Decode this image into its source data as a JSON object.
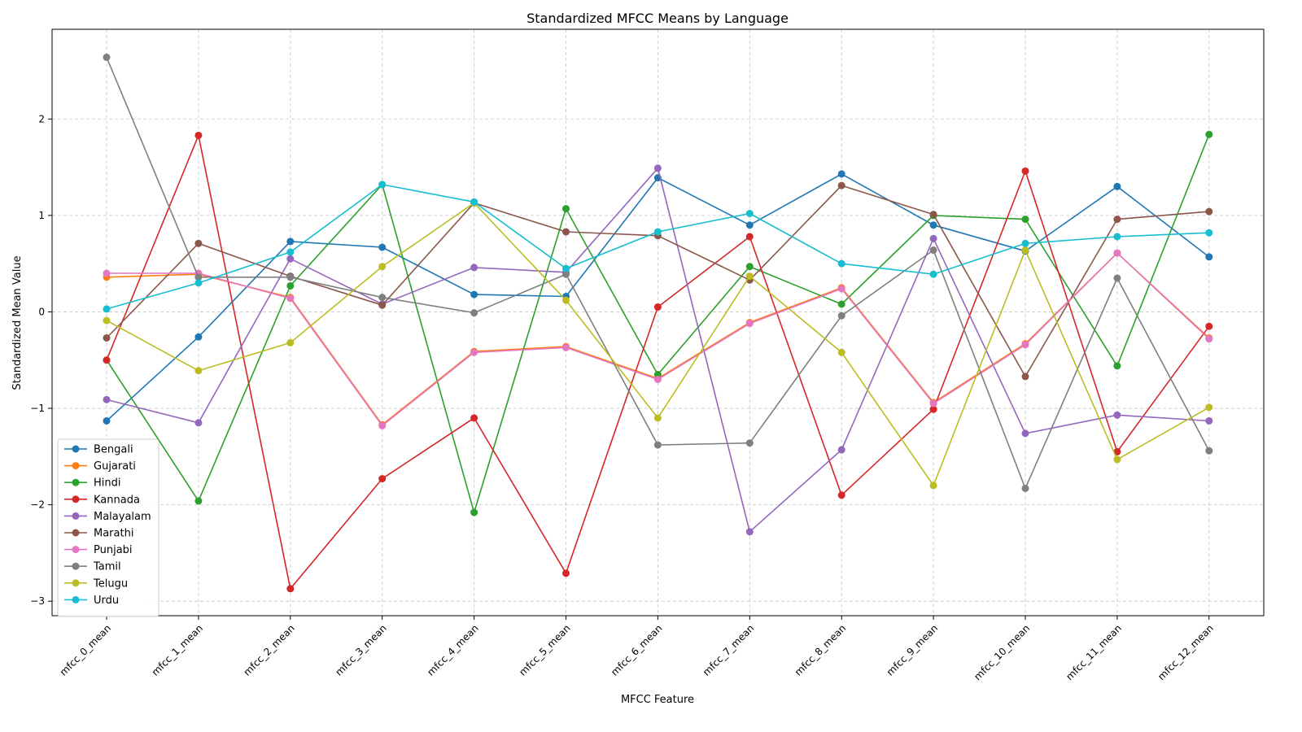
{
  "chart_data": {
    "type": "line",
    "title": "Standardized MFCC Means by Language",
    "xlabel": "MFCC Feature",
    "ylabel": "Standardized Mean Value",
    "categories": [
      "mfcc_0_mean",
      "mfcc_1_mean",
      "mfcc_2_mean",
      "mfcc_3_mean",
      "mfcc_4_mean",
      "mfcc_5_mean",
      "mfcc_6_mean",
      "mfcc_7_mean",
      "mfcc_8_mean",
      "mfcc_9_mean",
      "mfcc_10_mean",
      "mfcc_11_mean",
      "mfcc_12_mean"
    ],
    "ylim": [
      -3.15,
      2.93
    ],
    "yticks": [
      -3,
      -2,
      -1,
      0,
      1,
      2
    ],
    "yticklabels": [
      "−3",
      "−2",
      "−1",
      "0",
      "1",
      "2"
    ],
    "grid": true,
    "legend_position": "lower-left",
    "series": [
      {
        "name": "Bengali",
        "color": "#1f77b4",
        "values": [
          -1.13,
          -0.26,
          0.73,
          0.67,
          0.18,
          0.16,
          1.39,
          0.9,
          1.43,
          0.9,
          0.63,
          1.3,
          0.57
        ]
      },
      {
        "name": "Gujarati",
        "color": "#ff7f0e",
        "values": [
          0.36,
          0.39,
          0.15,
          -1.17,
          -0.41,
          -0.36,
          -0.69,
          -0.11,
          0.25,
          -0.94,
          -0.33,
          0.61,
          -0.27
        ]
      },
      {
        "name": "Hindi",
        "color": "#2ca02c",
        "values": [
          -0.5,
          -1.96,
          0.27,
          1.32,
          -2.08,
          1.07,
          -0.65,
          0.47,
          0.08,
          1.0,
          0.96,
          -0.56,
          1.84
        ]
      },
      {
        "name": "Kannada",
        "color": "#d62728",
        "values": [
          -0.5,
          1.83,
          -2.87,
          -1.73,
          -1.1,
          -2.71,
          0.05,
          0.78,
          -1.9,
          -1.01,
          1.46,
          -1.45,
          -0.15
        ]
      },
      {
        "name": "Malayalam",
        "color": "#9467bd",
        "values": [
          -0.91,
          -1.15,
          0.55,
          0.08,
          0.46,
          0.41,
          1.49,
          -2.28,
          -1.43,
          0.76,
          -1.26,
          -1.07,
          -1.13
        ]
      },
      {
        "name": "Marathi",
        "color": "#8c564b",
        "values": [
          -0.27,
          0.71,
          0.37,
          0.07,
          1.13,
          0.83,
          0.79,
          0.33,
          1.31,
          1.01,
          -0.67,
          0.96,
          1.04
        ]
      },
      {
        "name": "Punjabi",
        "color": "#e377c2",
        "values": [
          0.4,
          0.4,
          0.14,
          -1.18,
          -0.42,
          -0.37,
          -0.7,
          -0.12,
          0.24,
          -0.95,
          -0.34,
          0.61,
          -0.28
        ]
      },
      {
        "name": "Tamil",
        "color": "#7f7f7f",
        "values": [
          2.64,
          0.36,
          0.36,
          0.15,
          -0.01,
          0.39,
          -1.38,
          -1.36,
          -0.04,
          0.64,
          -1.83,
          0.35,
          -1.44
        ]
      },
      {
        "name": "Telugu",
        "color": "#bcbd22",
        "values": [
          -0.09,
          -0.61,
          -0.32,
          0.47,
          1.13,
          0.12,
          -1.1,
          0.37,
          -0.42,
          -1.8,
          0.64,
          -1.53,
          -0.99
        ]
      },
      {
        "name": "Urdu",
        "color": "#17becf",
        "values": [
          0.03,
          0.3,
          0.62,
          1.32,
          1.14,
          0.45,
          0.83,
          1.02,
          0.5,
          0.39,
          0.71,
          0.78,
          0.82
        ]
      }
    ]
  }
}
